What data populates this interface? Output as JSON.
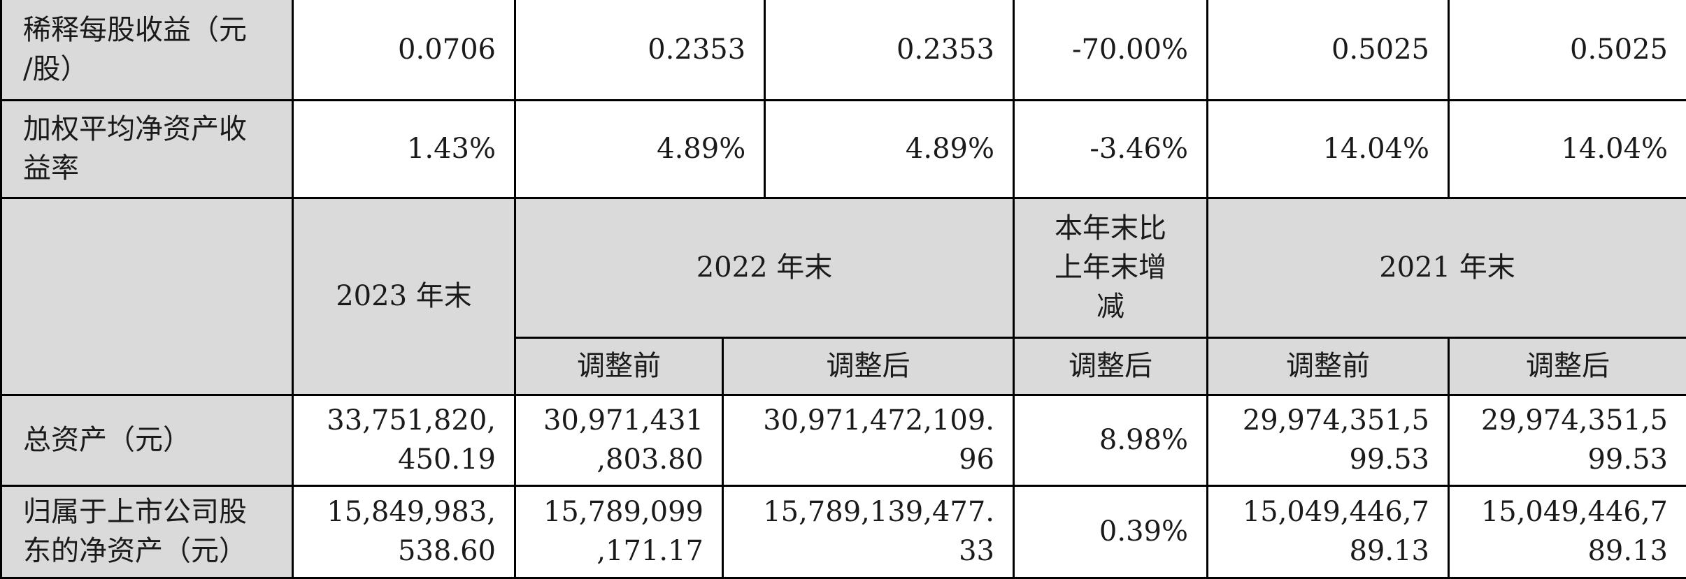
{
  "rows_top": [
    {
      "label": "稀释每股收益（元\n/股）",
      "values": [
        "0.0706",
        "0.2353",
        "0.2353",
        "-70.00%",
        "0.5025",
        "0.5025"
      ]
    },
    {
      "label": "加权平均净资产收\n益率",
      "values": [
        "1.43%",
        "4.89%",
        "4.89%",
        "-3.46%",
        "14.04%",
        "14.04%"
      ]
    }
  ],
  "header": {
    "year_2023": "2023 年末",
    "year_2022": "2022 年末",
    "change": "本年末比\n上年末增\n减",
    "year_2021": "2021 年末",
    "before_2022": "调整前",
    "after_2022": "调整后",
    "after_change": "调整后",
    "before_2021": "调整前",
    "after_2021": "调整后"
  },
  "rows_bottom": [
    {
      "label": "总资产（元）",
      "values": [
        "33,751,820,\n450.19",
        "30,971,431\n,803.80",
        "30,971,472,109.\n96",
        "8.98%",
        "29,974,351,5\n99.53",
        "29,974,351,5\n99.53"
      ]
    },
    {
      "label": "归属于上市公司股\n东的净资产（元）",
      "values": [
        "15,849,983,\n538.60",
        "15,789,099\n,171.17",
        "15,789,139,477.\n33",
        "0.39%",
        "15,049,446,7\n89.13",
        "15,049,446,7\n89.13"
      ]
    }
  ]
}
